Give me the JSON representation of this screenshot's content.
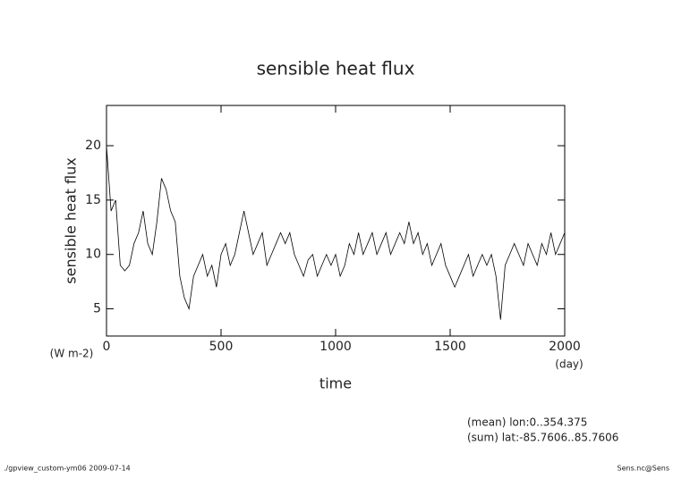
{
  "chart_data": {
    "type": "line",
    "title": "sensible heat flux",
    "ylabel": "sensible heat flux",
    "yunits": "(W m-2)",
    "xlabel": "time",
    "xunits": "(day)",
    "annotations": [
      "(mean) lon:0..354.375",
      "(sum) lat:-85.7606..85.7606"
    ],
    "footer_left": "./gpview_custom-ym06  2009-07-14",
    "footer_right": "Sens.nc@Sens",
    "xlim": [
      0,
      2000
    ],
    "xticks": [
      0,
      500,
      1000,
      1500,
      2000
    ],
    "ylim": [
      2.5,
      23.7
    ],
    "yticks": [
      5,
      10,
      15,
      20
    ],
    "series": [
      {
        "color": "#000000",
        "x": [
          0,
          20,
          40,
          60,
          80,
          100,
          120,
          140,
          160,
          180,
          200,
          220,
          240,
          260,
          280,
          300,
          320,
          340,
          360,
          380,
          400,
          420,
          440,
          460,
          480,
          500,
          520,
          540,
          560,
          580,
          600,
          620,
          640,
          660,
          680,
          700,
          720,
          740,
          760,
          780,
          800,
          820,
          840,
          860,
          880,
          900,
          920,
          940,
          960,
          980,
          1000,
          1020,
          1040,
          1060,
          1080,
          1100,
          1120,
          1140,
          1160,
          1180,
          1200,
          1220,
          1240,
          1260,
          1280,
          1300,
          1320,
          1340,
          1360,
          1380,
          1400,
          1420,
          1440,
          1460,
          1480,
          1500,
          1520,
          1540,
          1560,
          1580,
          1600,
          1620,
          1640,
          1660,
          1680,
          1700,
          1720,
          1740,
          1760,
          1780,
          1800,
          1820,
          1840,
          1860,
          1880,
          1900,
          1920,
          1940,
          1960,
          1980,
          2000
        ],
        "values": [
          20,
          14,
          15,
          9,
          8.5,
          9,
          11,
          12,
          14,
          11,
          10,
          13,
          17,
          16,
          14,
          13,
          8,
          6,
          5,
          8,
          9,
          10,
          8,
          9,
          7,
          10,
          11,
          9,
          10,
          12,
          14,
          12,
          10,
          11,
          12,
          9,
          10,
          11,
          12,
          11,
          12,
          10,
          9,
          8,
          9.5,
          10,
          8,
          9,
          10,
          9,
          10,
          8,
          9,
          11,
          10,
          12,
          10,
          11,
          12,
          10,
          11,
          12,
          10,
          11,
          12,
          11,
          13,
          11,
          12,
          10,
          11,
          9,
          10,
          11,
          9,
          8,
          7,
          8,
          9,
          10,
          8,
          9,
          10,
          9,
          10,
          8,
          4,
          9,
          10,
          11,
          10,
          9,
          11,
          10,
          9,
          11,
          10,
          12,
          10,
          11,
          12
        ]
      }
    ]
  }
}
